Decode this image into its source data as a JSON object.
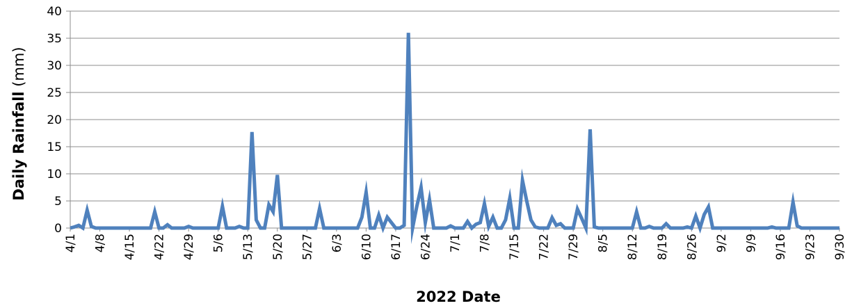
{
  "chart_data": {
    "type": "line",
    "title": "",
    "xlabel": "2022 Date",
    "ylabel": {
      "bold": "Daily Rainfall",
      "normal": " (mm)"
    },
    "ylim": [
      0,
      40
    ],
    "yticks": [
      0,
      5,
      10,
      15,
      20,
      25,
      30,
      35,
      40
    ],
    "xlim": [
      "2022-04-01",
      "2022-09-30"
    ],
    "xticks": [
      "4/1",
      "4/8",
      "4/15",
      "4/22",
      "4/29",
      "5/6",
      "5/13",
      "5/20",
      "5/27",
      "6/3",
      "6/10",
      "6/17",
      "6/24",
      "7/1",
      "7/8",
      "7/15",
      "7/22",
      "7/29",
      "8/5",
      "8/12",
      "8/19",
      "8/26",
      "9/2",
      "9/9",
      "9/16",
      "9/23",
      "9/30"
    ],
    "grid": true,
    "line_color": "#4f81bd",
    "series": [
      {
        "points": [
          [
            "2022-04-01",
            0
          ],
          [
            "2022-04-02",
            0.2
          ],
          [
            "2022-04-03",
            0.5
          ],
          [
            "2022-04-04",
            0
          ],
          [
            "2022-04-05",
            3.3
          ],
          [
            "2022-04-06",
            0.3
          ],
          [
            "2022-04-07",
            0
          ],
          [
            "2022-04-20",
            0
          ],
          [
            "2022-04-21",
            3.0
          ],
          [
            "2022-04-22",
            0
          ],
          [
            "2022-04-23",
            0
          ],
          [
            "2022-04-24",
            0.6
          ],
          [
            "2022-04-25",
            0
          ],
          [
            "2022-04-28",
            0
          ],
          [
            "2022-04-29",
            0.3
          ],
          [
            "2022-04-30",
            0
          ],
          [
            "2022-05-06",
            0
          ],
          [
            "2022-05-07",
            4.0
          ],
          [
            "2022-05-08",
            0
          ],
          [
            "2022-05-10",
            0
          ],
          [
            "2022-05-11",
            0.3
          ],
          [
            "2022-05-12",
            0
          ],
          [
            "2022-05-13",
            0
          ],
          [
            "2022-05-14",
            17.7
          ],
          [
            "2022-05-15",
            1.5
          ],
          [
            "2022-05-16",
            0
          ],
          [
            "2022-05-17",
            0
          ],
          [
            "2022-05-18",
            4.3
          ],
          [
            "2022-05-19",
            3.0
          ],
          [
            "2022-05-20",
            9.8
          ],
          [
            "2022-05-21",
            0
          ],
          [
            "2022-05-29",
            0
          ],
          [
            "2022-05-30",
            3.6
          ],
          [
            "2022-05-31",
            0
          ],
          [
            "2022-06-08",
            0
          ],
          [
            "2022-06-09",
            2.0
          ],
          [
            "2022-06-10",
            6.6
          ],
          [
            "2022-06-11",
            0
          ],
          [
            "2022-06-12",
            0
          ],
          [
            "2022-06-13",
            2.4
          ],
          [
            "2022-06-14",
            0
          ],
          [
            "2022-06-15",
            2.0
          ],
          [
            "2022-06-16",
            1.0
          ],
          [
            "2022-06-17",
            0
          ],
          [
            "2022-06-18",
            0
          ],
          [
            "2022-06-19",
            0.5
          ],
          [
            "2022-06-20",
            36.0
          ],
          [
            "2022-06-21",
            0
          ],
          [
            "2022-06-22",
            4.0
          ],
          [
            "2022-06-23",
            7.5
          ],
          [
            "2022-06-24",
            1.0
          ],
          [
            "2022-06-25",
            5.2
          ],
          [
            "2022-06-26",
            0
          ],
          [
            "2022-06-29",
            0
          ],
          [
            "2022-06-30",
            0.4
          ],
          [
            "2022-07-01",
            0
          ],
          [
            "2022-07-03",
            0
          ],
          [
            "2022-07-04",
            1.2
          ],
          [
            "2022-07-05",
            0
          ],
          [
            "2022-07-06",
            0.7
          ],
          [
            "2022-07-07",
            1.0
          ],
          [
            "2022-07-08",
            4.5
          ],
          [
            "2022-07-09",
            0.3
          ],
          [
            "2022-07-10",
            2.0
          ],
          [
            "2022-07-11",
            0
          ],
          [
            "2022-07-12",
            0
          ],
          [
            "2022-07-13",
            1.5
          ],
          [
            "2022-07-14",
            5.5
          ],
          [
            "2022-07-15",
            0
          ],
          [
            "2022-07-16",
            0
          ],
          [
            "2022-07-17",
            8.8
          ],
          [
            "2022-07-18",
            5.0
          ],
          [
            "2022-07-19",
            1.5
          ],
          [
            "2022-07-20",
            0.2
          ],
          [
            "2022-07-21",
            0
          ],
          [
            "2022-07-22",
            0
          ],
          [
            "2022-07-23",
            0
          ],
          [
            "2022-07-24",
            1.9
          ],
          [
            "2022-07-25",
            0.5
          ],
          [
            "2022-07-26",
            0.8
          ],
          [
            "2022-07-27",
            0
          ],
          [
            "2022-07-28",
            0
          ],
          [
            "2022-07-29",
            0
          ],
          [
            "2022-07-30",
            3.5
          ],
          [
            "2022-07-31",
            1.8
          ],
          [
            "2022-08-01",
            0
          ],
          [
            "2022-08-02",
            18.2
          ],
          [
            "2022-08-03",
            0.2
          ],
          [
            "2022-08-04",
            0
          ],
          [
            "2022-08-12",
            0
          ],
          [
            "2022-08-13",
            3.0
          ],
          [
            "2022-08-14",
            0
          ],
          [
            "2022-08-15",
            0
          ],
          [
            "2022-08-16",
            0.3
          ],
          [
            "2022-08-17",
            0
          ],
          [
            "2022-08-19",
            0
          ],
          [
            "2022-08-20",
            0.8
          ],
          [
            "2022-08-21",
            0
          ],
          [
            "2022-08-24",
            0
          ],
          [
            "2022-08-25",
            0.2
          ],
          [
            "2022-08-26",
            0
          ],
          [
            "2022-08-27",
            2.2
          ],
          [
            "2022-08-28",
            0
          ],
          [
            "2022-08-29",
            2.5
          ],
          [
            "2022-08-30",
            3.9
          ],
          [
            "2022-08-31",
            0
          ],
          [
            "2022-09-13",
            0
          ],
          [
            "2022-09-14",
            0.2
          ],
          [
            "2022-09-15",
            0
          ],
          [
            "2022-09-17",
            0
          ],
          [
            "2022-09-18",
            0
          ],
          [
            "2022-09-19",
            4.8
          ],
          [
            "2022-09-20",
            0.4
          ],
          [
            "2022-09-21",
            0
          ],
          [
            "2022-09-30",
            0
          ]
        ]
      }
    ]
  }
}
